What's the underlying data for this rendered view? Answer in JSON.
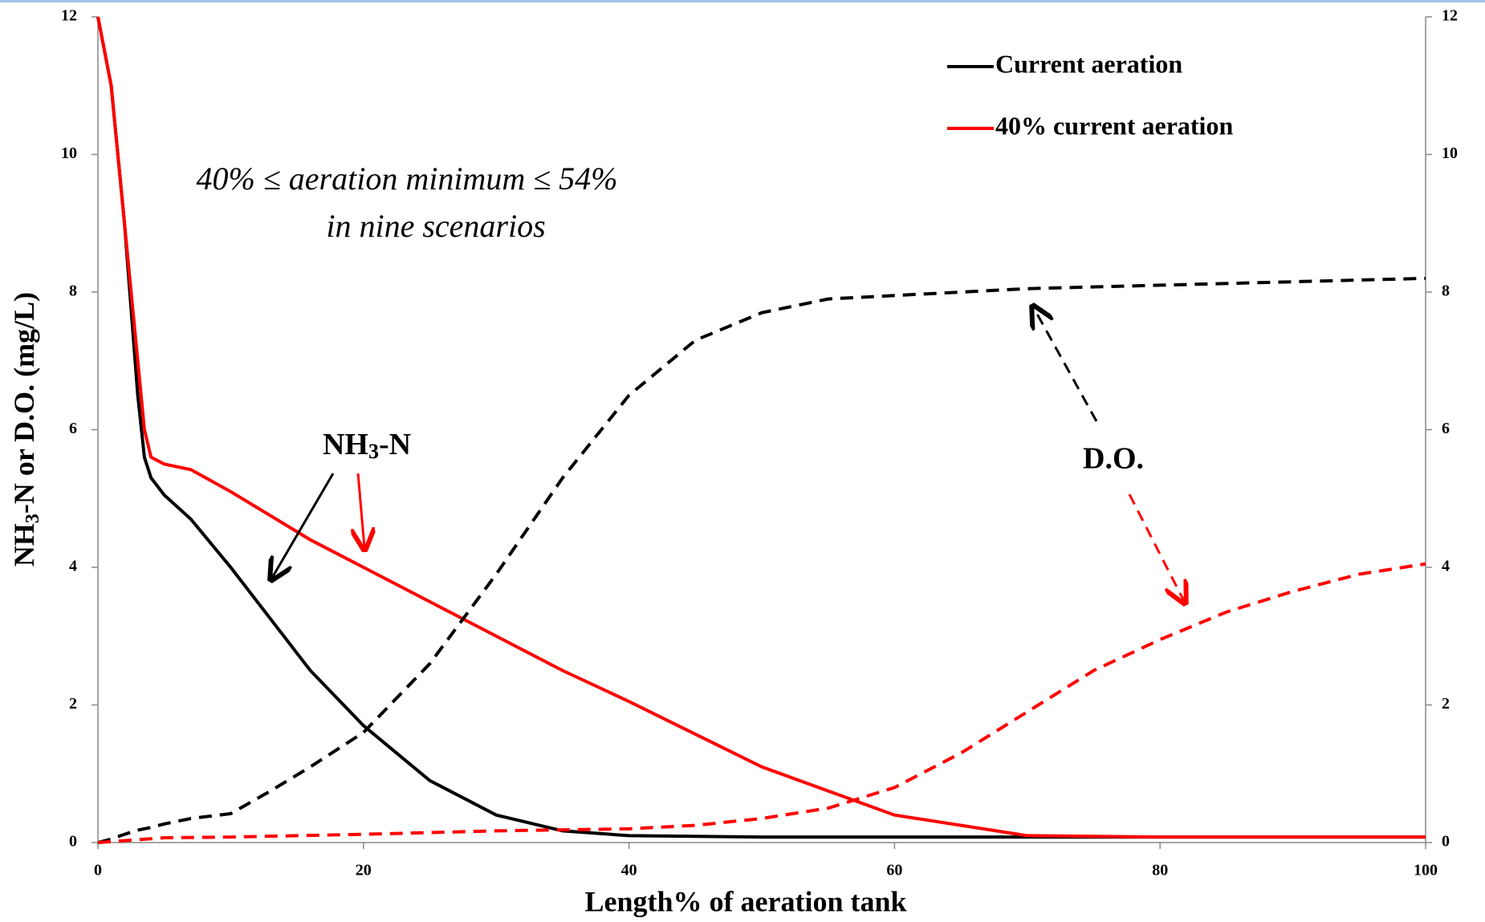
{
  "chart_data": {
    "type": "line",
    "x_label": "Length% of aeration tank",
    "y_label": {
      "main": "NH",
      "sub": "3",
      "rest": "-N or D.O. (mg/L)"
    },
    "xlim": [
      0,
      100
    ],
    "xticks": [
      0,
      20,
      40,
      60,
      80,
      100
    ],
    "ylim": [
      0,
      12
    ],
    "yticks": [
      0,
      2,
      4,
      6,
      8,
      10,
      12
    ],
    "y2lim": [
      0,
      12
    ],
    "y2ticks": [
      0,
      2,
      4,
      6,
      8,
      10,
      12
    ],
    "legend_position": "upper right",
    "legend": [
      {
        "name": "Current aeration",
        "color": "#000000"
      },
      {
        "name": "40% current aeration",
        "color": "#ff0000"
      }
    ],
    "annotations": {
      "range": "40% ≤ aeration minimum ≤ 54%",
      "scenarios": "in nine scenarios",
      "nh3": {
        "main": "NH",
        "sub": "3",
        "rest": "-N"
      },
      "do": "D.O."
    },
    "series": [
      {
        "color": "#000000",
        "dash": false,
        "x": [
          0,
          1,
          2,
          3,
          3.5,
          4,
          5,
          7,
          10,
          13,
          16,
          20,
          25,
          30,
          35,
          40,
          50,
          60,
          70,
          80,
          90,
          100
        ],
        "values": [
          12,
          11,
          9,
          6.5,
          5.6,
          5.3,
          5.05,
          4.7,
          4.0,
          3.25,
          2.5,
          1.7,
          0.9,
          0.4,
          0.17,
          0.1,
          0.08,
          0.08,
          0.08,
          0.08,
          0.08,
          0.08
        ]
      },
      {
        "color": "#ff0000",
        "dash": false,
        "x": [
          0,
          1,
          2,
          3,
          3.5,
          4,
          5,
          7,
          10,
          13,
          16,
          20,
          25,
          30,
          35,
          40,
          50,
          60,
          70,
          80,
          90,
          100
        ],
        "values": [
          12,
          11,
          9,
          7,
          6,
          5.6,
          5.5,
          5.42,
          5.1,
          4.75,
          4.4,
          4.0,
          3.5,
          3.0,
          2.5,
          2.05,
          1.1,
          0.4,
          0.1,
          0.08,
          0.08,
          0.08
        ]
      },
      {
        "color": "#000000",
        "dash": true,
        "x": [
          0,
          1,
          2,
          3,
          4,
          5,
          7,
          10,
          13,
          16,
          20,
          25,
          30,
          35,
          40,
          45,
          50,
          55,
          60,
          70,
          80,
          90,
          100
        ],
        "values": [
          0,
          0.05,
          0.12,
          0.18,
          0.22,
          0.27,
          0.35,
          0.42,
          0.75,
          1.1,
          1.6,
          2.6,
          3.9,
          5.3,
          6.5,
          7.3,
          7.7,
          7.9,
          7.95,
          8.05,
          8.1,
          8.15,
          8.2
        ]
      },
      {
        "color": "#ff0000",
        "dash": true,
        "x": [
          0,
          5,
          10,
          20,
          30,
          40,
          45,
          50,
          55,
          60,
          65,
          70,
          75,
          80,
          85,
          90,
          95,
          100
        ],
        "values": [
          0,
          0.07,
          0.08,
          0.12,
          0.17,
          0.2,
          0.25,
          0.35,
          0.5,
          0.8,
          1.3,
          1.9,
          2.5,
          2.95,
          3.35,
          3.65,
          3.9,
          4.05
        ]
      }
    ]
  }
}
